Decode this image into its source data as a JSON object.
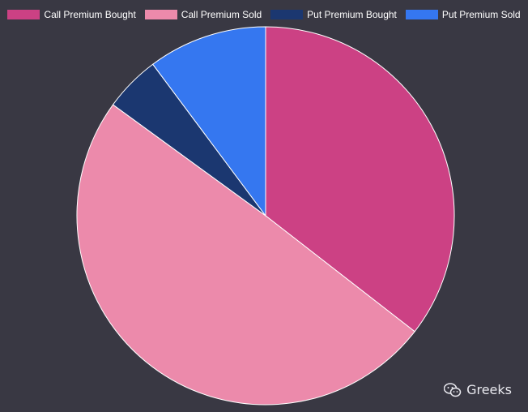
{
  "chart_data": {
    "type": "pie",
    "title": "",
    "categories": [
      "Call Premium Bought",
      "Call Premium Sold",
      "Put Premium Bought",
      "Put Premium Sold"
    ],
    "values": [
      35.5,
      49.5,
      4.8,
      10.2
    ],
    "colors": [
      "#cc4184",
      "#ec8aab",
      "#1b3770",
      "#3577f0"
    ],
    "legend_position": "top",
    "start_angle": "12 o'clock",
    "direction": "clockwise"
  },
  "watermark": {
    "label": "Greeks",
    "icon": "wechat-icon"
  }
}
